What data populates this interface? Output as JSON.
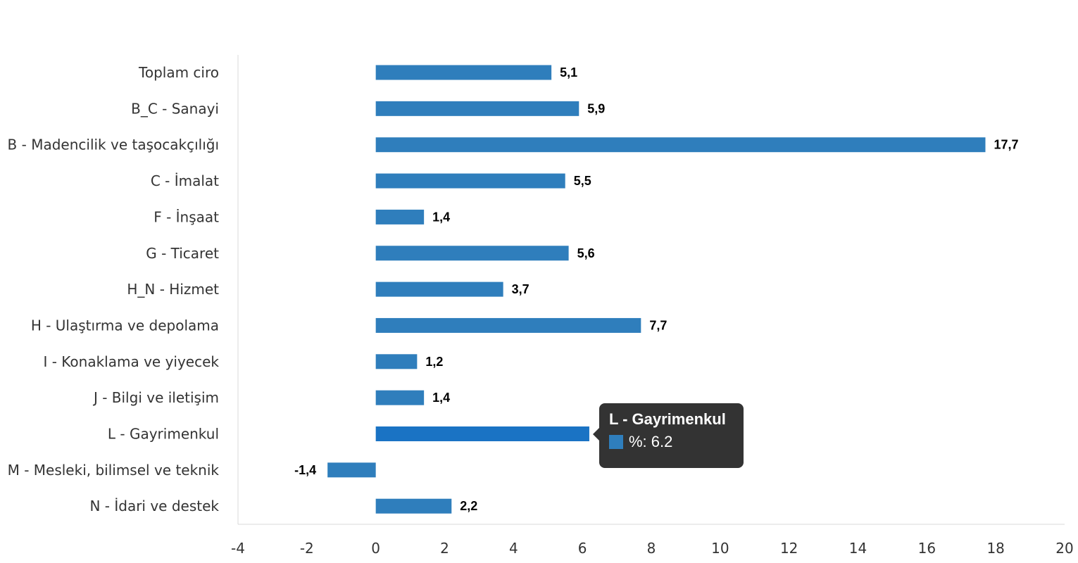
{
  "chart_data": {
    "type": "bar",
    "orientation": "horizontal",
    "categories": [
      "Toplam ciro",
      "B_C - Sanayi",
      "B - Madencilik ve taşocakçılığı",
      "C - İmalat",
      "F - İnşaat",
      "G - Ticaret",
      "H_N - Hizmet",
      "H - Ulaştırma ve depolama",
      "I - Konaklama ve yiyecek",
      "J - Bilgi ve iletişim",
      "L - Gayrimenkul",
      "M - Mesleki, bilimsel ve teknik",
      "N - İdari ve destek"
    ],
    "series": [
      {
        "name": "%",
        "values": [
          5.1,
          5.9,
          17.7,
          5.5,
          1.4,
          5.6,
          3.7,
          7.7,
          1.2,
          1.4,
          6.2,
          -1.4,
          2.2
        ],
        "data_labels": [
          "5,1",
          "5,9",
          "17,7",
          "5,5",
          "1,4",
          "5,6",
          "3,7",
          "7,7",
          "1,2",
          "1,4",
          "6,2",
          "-1,4",
          "2,2"
        ]
      }
    ],
    "xlim": [
      -4,
      20
    ],
    "xticks": [
      -4,
      -2,
      0,
      2,
      4,
      6,
      8,
      10,
      12,
      14,
      16,
      18,
      20
    ],
    "title": "",
    "xlabel": "",
    "ylabel": "",
    "grid": false,
    "bar_color": "#2f7ebc",
    "highlight_color": "#1a73c4",
    "highlight_index": 10
  },
  "tooltip": {
    "title": "L - Gayrimenkul",
    "series_label": "%: 6.2",
    "swatch_color": "#2f7ebc"
  }
}
